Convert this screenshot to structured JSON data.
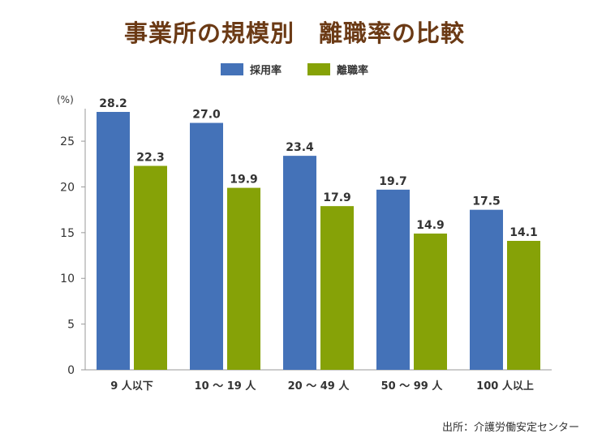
{
  "chart_data": {
    "type": "bar",
    "title": "事業所の規模別　離職率の比較",
    "unit_label": "(%)",
    "categories": [
      "9 人以下",
      "10 ～ 19 人",
      "20 ～ 49 人",
      "50 ～ 99 人",
      "100 人以上"
    ],
    "series": [
      {
        "name": "採用率",
        "color": "#4472b8",
        "values": [
          28.2,
          27.0,
          23.4,
          19.7,
          17.5
        ]
      },
      {
        "name": "離職率",
        "color": "#86a207",
        "values": [
          22.3,
          19.9,
          17.9,
          14.9,
          14.1
        ]
      }
    ],
    "value_labels": [
      [
        "28.2",
        "27.0",
        "23.4",
        "19.7",
        "17.5"
      ],
      [
        "22.3",
        "19.9",
        "17.9",
        "14.9",
        "14.1"
      ]
    ],
    "ylim": [
      0,
      28.2
    ],
    "yticks": [
      0,
      5,
      10,
      15,
      20,
      25
    ],
    "legend_position": "top-center",
    "grid": false
  },
  "source": "出所：介護労働安定センター"
}
